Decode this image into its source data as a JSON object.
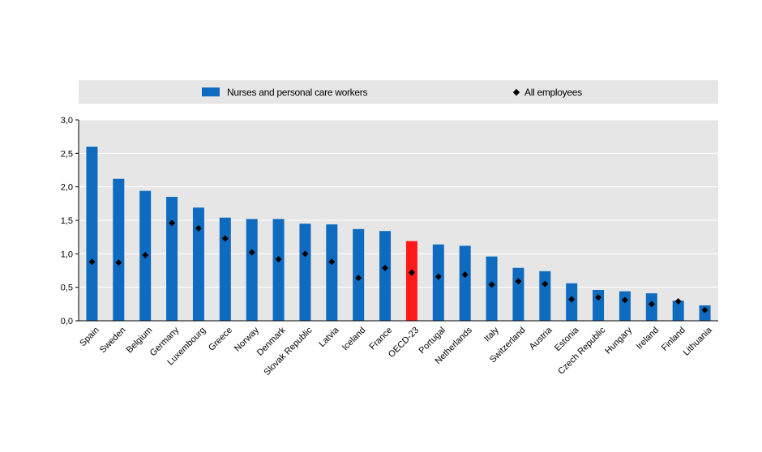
{
  "chart_data": {
    "type": "bar",
    "title": "",
    "xlabel": "",
    "ylabel": "",
    "ylim": [
      0,
      3.0
    ],
    "yticks": [
      "0,0",
      "0,5",
      "1,0",
      "1,5",
      "2,0",
      "2,5",
      "3,0"
    ],
    "grid": true,
    "legend_position": "top",
    "categories": [
      "Spain",
      "Sweden",
      "Belgium",
      "Germany",
      "Luxembourg",
      "Greece",
      "Norway",
      "Denmark",
      "Slovak Republic",
      "Latvia",
      "Iceland",
      "France",
      "OECD-23",
      "Portugal",
      "Netherlands",
      "Italy",
      "Switzerland",
      "Austria",
      "Estonia",
      "Czech Republic",
      "Hungary",
      "Ireland",
      "Finland",
      "Lithuania"
    ],
    "highlight_category": "OECD-23",
    "series": [
      {
        "name": "Nurses and personal care workers",
        "kind": "bar",
        "color": "#0e6bbf",
        "highlight_color": "#ff1a1a",
        "values": [
          2.6,
          2.12,
          1.94,
          1.85,
          1.69,
          1.54,
          1.52,
          1.52,
          1.45,
          1.44,
          1.37,
          1.34,
          1.19,
          1.14,
          1.12,
          0.96,
          0.79,
          0.74,
          0.56,
          0.46,
          0.44,
          0.41,
          0.3,
          0.23
        ]
      },
      {
        "name": "All employees",
        "kind": "marker",
        "color": "#000000",
        "values": [
          0.88,
          0.87,
          0.98,
          1.46,
          1.38,
          1.23,
          1.02,
          0.92,
          1.0,
          0.88,
          0.64,
          0.79,
          0.72,
          0.66,
          0.69,
          0.54,
          0.59,
          0.55,
          0.32,
          0.35,
          0.31,
          0.25,
          0.29,
          0.16
        ]
      }
    ]
  }
}
